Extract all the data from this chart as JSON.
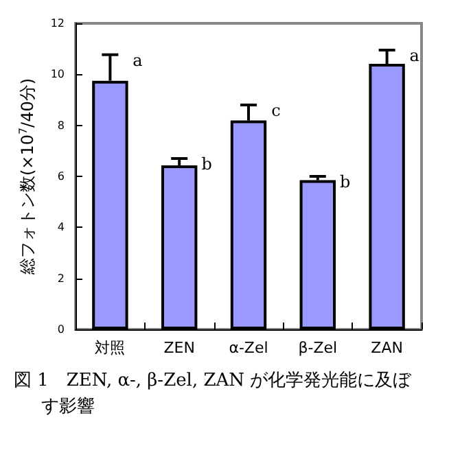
{
  "chart_data": {
    "type": "bar",
    "title": "図 1　ZEN, α-, β-Zel, ZAN が化学発光能に及ぼす影響",
    "ylabel": "総フォトン数(×10$^{7}$/40分)",
    "categories": [
      "対照",
      "ZEN",
      "α-Zel",
      "β-Zel",
      "ZAN"
    ],
    "values": [
      9.75,
      6.43,
      8.19,
      5.85,
      10.41
    ],
    "errors": [
      [
        9.75,
        10.77
      ],
      [
        6.43,
        6.7
      ],
      [
        8.19,
        8.8
      ],
      [
        5.85,
        6.0
      ],
      [
        10.41,
        10.95
      ]
    ],
    "color": "#9999ff",
    "ylim": [
      0,
      12
    ],
    "yticks": [
      0,
      2,
      4,
      6,
      8,
      10,
      12
    ],
    "grid": false,
    "annotations": [
      {
        "text": "a",
        "x": "対照",
        "y": 10.77
      },
      {
        "text": "b",
        "x": "ZEN",
        "y": 6.7
      },
      {
        "text": "c",
        "x": "α-Zel",
        "y": 8.8
      },
      {
        "text": "b",
        "x": "β-Zel",
        "y": 6.0
      },
      {
        "text": "a",
        "x": "ZAN",
        "y": 10.95
      }
    ]
  }
}
